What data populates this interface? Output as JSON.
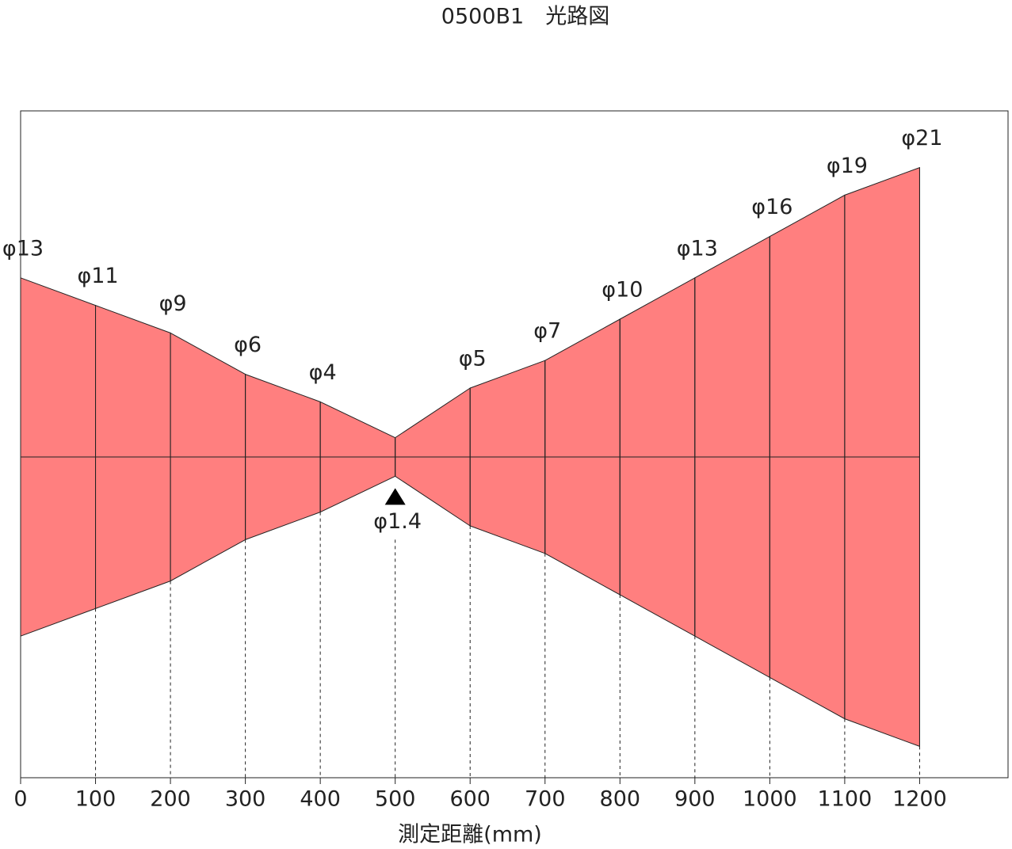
{
  "chart_data": {
    "type": "beam",
    "title": "0500B1　光路図",
    "xlabel": "測定距離(mm)",
    "x": [
      0,
      100,
      200,
      300,
      400,
      500,
      600,
      700,
      800,
      900,
      1000,
      1100,
      1200
    ],
    "values": [
      13,
      11,
      9,
      6,
      4,
      1.4,
      5,
      7,
      10,
      13,
      16,
      19,
      21
    ],
    "value_labels": [
      "φ13",
      "φ11",
      "φ9",
      "φ6",
      "φ4",
      "φ1.4",
      "φ5",
      "φ7",
      "φ10",
      "φ13",
      "φ16",
      "φ19",
      "φ21"
    ],
    "xlim": [
      0,
      1318
    ],
    "xticks": [
      0,
      100,
      200,
      300,
      400,
      500,
      600,
      700,
      800,
      900,
      1000,
      1100,
      1200
    ],
    "color": "#ff7f7f"
  }
}
